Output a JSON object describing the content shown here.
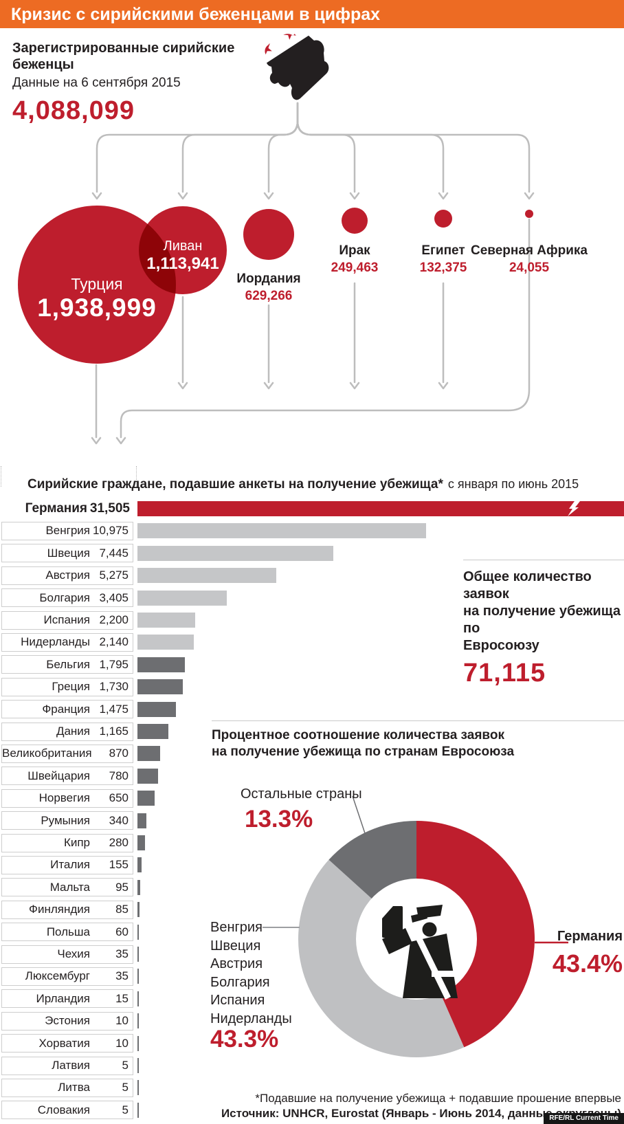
{
  "header": {
    "title": "Кризис с сирийскими беженцами в цифрах"
  },
  "registered": {
    "heading_line1": "Зарегистрированные сирийские",
    "heading_line2": "беженцы",
    "subheading": "Данные на 6 сентября 2015",
    "total": "4,088,099"
  },
  "chart_data": [
    {
      "type": "bubble",
      "title": "Зарегистрированные сирийские беженцы по странам",
      "items": [
        {
          "label": "Турция",
          "value_label": "1,938,999",
          "value": 1938999
        },
        {
          "label": "Ливан",
          "value_label": "1,113,941",
          "value": 1113941
        },
        {
          "label": "Иордания",
          "value_label": "629,266",
          "value": 629266
        },
        {
          "label": "Ирак",
          "value_label": "249,463",
          "value": 249463
        },
        {
          "label": "Египет",
          "value_label": "132,375",
          "value": 132375
        },
        {
          "label": "Северная Африка",
          "value_label": "24,055",
          "value": 24055
        }
      ]
    },
    {
      "type": "bar",
      "title_bold": "Сирийские граждане, подавшие анкеты на получение убежища*",
      "title_note": "с января по июнь 2015",
      "xlim": [
        0,
        11000
      ],
      "truncation_note": "Германия bar truncated with break symbol",
      "rows": [
        {
          "country": "Германия",
          "value_label": "31,505",
          "value": 31505,
          "truncated": true
        },
        {
          "country": "Венгрия",
          "value_label": "10,975",
          "value": 10975
        },
        {
          "country": "Швеция",
          "value_label": "7,445",
          "value": 7445
        },
        {
          "country": "Австрия",
          "value_label": "5,275",
          "value": 5275
        },
        {
          "country": "Болгария",
          "value_label": "3,405",
          "value": 3405
        },
        {
          "country": "Испания",
          "value_label": "2,200",
          "value": 2200
        },
        {
          "country": "Нидерланды",
          "value_label": "2,140",
          "value": 2140
        },
        {
          "country": "Бельгия",
          "value_label": "1,795",
          "value": 1795
        },
        {
          "country": "Греция",
          "value_label": "1,730",
          "value": 1730
        },
        {
          "country": "Франция",
          "value_label": "1,475",
          "value": 1475
        },
        {
          "country": "Дания",
          "value_label": "1,165",
          "value": 1165
        },
        {
          "country": "Великобритания",
          "value_label": "870",
          "value": 870
        },
        {
          "country": "Швейцария",
          "value_label": "780",
          "value": 780
        },
        {
          "country": "Норвегия",
          "value_label": "650",
          "value": 650
        },
        {
          "country": "Румыния",
          "value_label": "340",
          "value": 340
        },
        {
          "country": "Кипр",
          "value_label": "280",
          "value": 280
        },
        {
          "country": "Италия",
          "value_label": "155",
          "value": 155
        },
        {
          "country": "Мальта",
          "value_label": "95",
          "value": 95
        },
        {
          "country": "Финляндия",
          "value_label": "85",
          "value": 85
        },
        {
          "country": "Польша",
          "value_label": "60",
          "value": 60
        },
        {
          "country": "Чехия",
          "value_label": "35",
          "value": 35
        },
        {
          "country": "Люксембург",
          "value_label": "35",
          "value": 35
        },
        {
          "country": "Ирландия",
          "value_label": "15",
          "value": 15
        },
        {
          "country": "Эстония",
          "value_label": "10",
          "value": 10
        },
        {
          "country": "Хорватия",
          "value_label": "10",
          "value": 10
        },
        {
          "country": "Латвия",
          "value_label": "5",
          "value": 5
        },
        {
          "country": "Литва",
          "value_label": "5",
          "value": 5
        },
        {
          "country": "Словакия",
          "value_label": "5",
          "value": 5
        }
      ]
    },
    {
      "type": "pie",
      "title_line1": "Процентное соотношение количества заявок",
      "title_line2": "на получение убежища по странам Евросоюза",
      "slices": [
        {
          "label": "Германия",
          "pct": 43.4,
          "color": "#be1e2d"
        },
        {
          "label": "Венгрия, Швеция, Австрия, Болгария, Испания, Нидерланды",
          "pct": 43.3,
          "color": "#bfc0c2"
        },
        {
          "label": "Остальные страны",
          "pct": 13.3,
          "color": "#6d6e71"
        }
      ]
    }
  ],
  "total_eu": {
    "line1": "Общее количество заявок",
    "line2": "на получение убежища по",
    "line3": "Евросоюзу",
    "value": "71,115"
  },
  "donut_callouts": {
    "others": {
      "label": "Остальные страны",
      "pct": "13.3%"
    },
    "group": {
      "countries": [
        "Венгрия",
        "Швеция",
        "Австрия",
        "Болгария",
        "Испания",
        "Нидерланды"
      ],
      "pct": "43.3%"
    },
    "germany": {
      "label": "Германия",
      "pct": "43.4%"
    }
  },
  "footer": {
    "note": "*Подавшие на получение убежища + подавшие прошение впервые",
    "source": "Источник: UNHCR, Eurostat (Январь - Июнь 2014, данные округлены)",
    "watermark": "RFE/RL Current Time"
  },
  "icons": {
    "map": "syria-flag-map-icon",
    "center": "passport-officer-icon",
    "break": "axis-break-icon"
  },
  "colors": {
    "orange": "#ed6b23",
    "red": "#be1e2d",
    "bar_light": "#c5c6c8",
    "bar_dark": "#6d6e71",
    "donut_light": "#bfc0c2",
    "donut_dark": "#6d6e71",
    "connector": "#bdbdbd"
  }
}
